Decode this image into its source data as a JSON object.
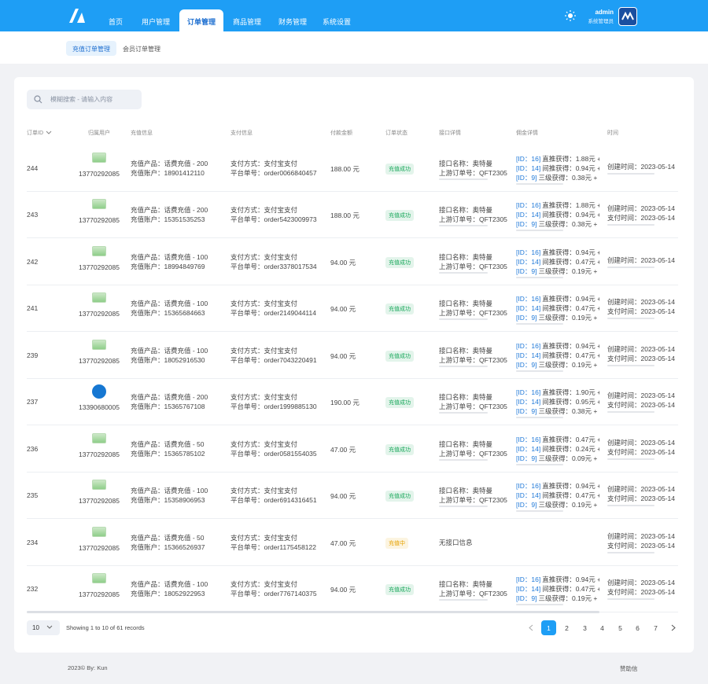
{
  "header": {
    "nav": [
      "首页",
      "用户管理",
      "订单管理",
      "商品管理",
      "财务管理",
      "系统设置"
    ],
    "user": "admin",
    "role": "系统管理员"
  },
  "tabs": [
    "充值订单管理",
    "会员订单管理"
  ],
  "search_placeholder": "模糊搜索 - 请输入内容",
  "table": {
    "columns": [
      "订单ID",
      "归属用户",
      "充值信息",
      "支付信息",
      "付款金额",
      "订单状态",
      "接口详情",
      "佣金详情",
      "时间"
    ],
    "rows": [
      {
        "id": "244",
        "user": "13770292085",
        "product": "充值产品：话费充值 - 200",
        "account": "充值账户：18901412110",
        "pay": "支付方式：支付宝支付",
        "order": "平台单号：order0066840457",
        "amount": "188.00 元",
        "status": "充值成功",
        "status_color": "#19a85b",
        "interface": [
          "接口名称：奥特曼",
          "上游订单号：QFT2305"
        ],
        "commission": [
          [
            "[ID：16]",
            "直推获得：1.88元 +"
          ],
          [
            "[ID：14]",
            "间推获得：0.94元 +"
          ],
          [
            "[ID：9]",
            "三级获得：0.38元 +"
          ]
        ],
        "times": [
          "创建时间：2023-05-14"
        ]
      },
      {
        "id": "243",
        "user": "13770292085",
        "product": "充值产品：话费充值 - 200",
        "account": "充值账户：15351535253",
        "pay": "支付方式：支付宝支付",
        "order": "平台单号：order5423009973",
        "amount": "188.00 元",
        "status": "充值成功",
        "status_color": "#19a85b",
        "interface": [
          "接口名称：奥特曼",
          "上游订单号：QFT2305"
        ],
        "commission": [
          [
            "[ID：16]",
            "直推获得：1.88元 +"
          ],
          [
            "[ID：14]",
            "间推获得：0.94元 +"
          ],
          [
            "[ID：9]",
            "三级获得：0.38元 +"
          ]
        ],
        "times": [
          "创建时间：2023-05-14",
          "支付时间：2023-05-14"
        ]
      },
      {
        "id": "242",
        "user": "13770292085",
        "product": "充值产品：话费充值 - 100",
        "account": "充值账户：18994849769",
        "pay": "支付方式：支付宝支付",
        "order": "平台单号：order3378017534",
        "amount": "94.00 元",
        "status": "充值成功",
        "status_color": "#19a85b",
        "interface": [
          "接口名称：奥特曼",
          "上游订单号：QFT2305"
        ],
        "commission": [
          [
            "[ID：16]",
            "直推获得：0.94元 +"
          ],
          [
            "[ID：14]",
            "间推获得：0.47元 +"
          ],
          [
            "[ID：9]",
            "三级获得：0.19元 +"
          ]
        ],
        "times": [
          "创建时间：2023-05-14"
        ]
      },
      {
        "id": "241",
        "user": "13770292085",
        "product": "充值产品：话费充值 - 100",
        "account": "充值账户：15365684663",
        "pay": "支付方式：支付宝支付",
        "order": "平台单号：order2149044114",
        "amount": "94.00 元",
        "status": "充值成功",
        "status_color": "#19a85b",
        "interface": [
          "接口名称：奥特曼",
          "上游订单号：QFT2305"
        ],
        "commission": [
          [
            "[ID：16]",
            "直推获得：0.94元 +"
          ],
          [
            "[ID：14]",
            "间推获得：0.47元 +"
          ],
          [
            "[ID：9]",
            "三级获得：0.19元 +"
          ]
        ],
        "times": [
          "创建时间：2023-05-14",
          "支付时间：2023-05-14"
        ]
      },
      {
        "id": "239",
        "user": "13770292085",
        "product": "充值产品：话费充值 - 100",
        "account": "充值账户：18052916530",
        "pay": "支付方式：支付宝支付",
        "order": "平台单号：order7043220491",
        "amount": "94.00 元",
        "status": "充值成功",
        "status_color": "#19a85b",
        "interface": [
          "接口名称：奥特曼",
          "上游订单号：QFT2305"
        ],
        "commission": [
          [
            "[ID：16]",
            "直推获得：0.94元 +"
          ],
          [
            "[ID：14]",
            "间推获得：0.47元 +"
          ],
          [
            "[ID：9]",
            "三级获得：0.19元 +"
          ]
        ],
        "times": [
          "创建时间：2023-05-14",
          "支付时间：2023-05-14"
        ]
      },
      {
        "id": "237",
        "user": "13390680005",
        "product": "充值产品：话费充值 - 200",
        "account": "充值账户：15365767108",
        "pay": "支付方式：支付宝支付",
        "order": "平台单号：order1999885130",
        "amount": "190.00 元",
        "status": "充值成功",
        "status_color": "#19a85b",
        "interface": [
          "接口名称：奥特曼",
          "上游订单号：QFT2305"
        ],
        "commission": [
          [
            "[ID：16]",
            "直推获得：1.90元 +"
          ],
          [
            "[ID：14]",
            "间推获得：0.95元 +"
          ],
          [
            "[ID：9]",
            "三级获得：0.38元 +"
          ]
        ],
        "times": [
          "创建时间：2023-05-14",
          "支付时间：2023-05-14"
        ]
      },
      {
        "id": "236",
        "user": "13770292085",
        "product": "充值产品：话费充值 - 50",
        "account": "充值账户：15365785102",
        "pay": "支付方式：支付宝支付",
        "order": "平台单号：order0581554035",
        "amount": "47.00 元",
        "status": "充值成功",
        "status_color": "#19a85b",
        "interface": [
          "接口名称：奥特曼",
          "上游订单号：QFT2305"
        ],
        "commission": [
          [
            "[ID：16]",
            "直推获得：0.47元 +"
          ],
          [
            "[ID：14]",
            "间推获得：0.24元 +"
          ],
          [
            "[ID：9]",
            "三级获得：0.09元 +"
          ]
        ],
        "times": [
          "创建时间：2023-05-14",
          "支付时间：2023-05-14"
        ]
      },
      {
        "id": "235",
        "user": "13770292085",
        "product": "充值产品：话费充值 - 100",
        "account": "充值账户：15358906953",
        "pay": "支付方式：支付宝支付",
        "order": "平台单号：order6914316451",
        "amount": "94.00 元",
        "status": "充值成功",
        "status_color": "#19a85b",
        "interface": [
          "接口名称：奥特曼",
          "上游订单号：QFT2305"
        ],
        "commission": [
          [
            "[ID：16]",
            "直推获得：0.94元 +"
          ],
          [
            "[ID：14]",
            "间推获得：0.47元 +"
          ],
          [
            "[ID：9]",
            "三级获得：0.19元 +"
          ]
        ],
        "times": [
          "创建时间：2023-05-14",
          "支付时间：2023-05-14"
        ]
      },
      {
        "id": "234",
        "user": "13770292085",
        "product": "充值产品：话费充值 - 50",
        "account": "充值账户：15366526937",
        "pay": "支付方式：支付宝支付",
        "order": "平台单号：order1175458122",
        "amount": "47.00 元",
        "status": "充值中",
        "status_color": "#e6a100",
        "interface": [
          "无接口信息"
        ],
        "commission": [],
        "times": [
          "创建时间：2023-05-14",
          "支付时间：2023-05-14"
        ]
      },
      {
        "id": "232",
        "user": "13770292085",
        "product": "充值产品：话费充值 - 100",
        "account": "充值账户：18052922953",
        "pay": "支付方式：支付宝支付",
        "order": "平台单号：order7767140375",
        "amount": "94.00 元",
        "status": "充值成功",
        "status_color": "#19a85b",
        "interface": [
          "接口名称：奥特曼",
          "上游订单号：QFT2305"
        ],
        "commission": [
          [
            "[ID：16]",
            "直推获得：0.94元 +"
          ],
          [
            "[ID：14]",
            "间推获得：0.47元 +"
          ],
          [
            "[ID：9]",
            "三级获得：0.19元 +"
          ]
        ],
        "times": [
          "创建时间：2023-05-14",
          "支付时间：2023-05-14"
        ]
      }
    ]
  },
  "pagination": {
    "page_size": 10,
    "summary": "Showing 1 to 10 of 61 records",
    "pages": [
      1,
      2,
      3,
      4,
      5,
      6,
      7
    ]
  },
  "footer": {
    "copyright": "2023© By: Kun",
    "link": "赞助信"
  }
}
